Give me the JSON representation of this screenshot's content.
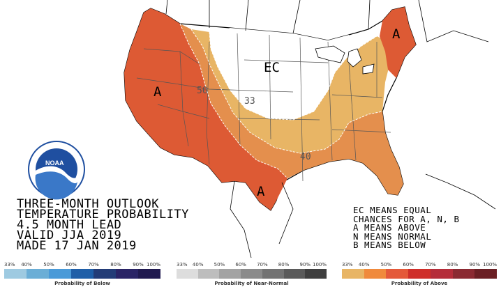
{
  "map": {
    "labels": {
      "ec": "EC",
      "a_west": "A",
      "a_texas": "A",
      "a_ne": "A",
      "c50": "50",
      "c33": "33",
      "c40": "40"
    }
  },
  "title_lines": [
    "THREE-MONTH OUTLOOK",
    "TEMPERATURE PROBABILITY",
    "4.5 MONTH LEAD",
    "VALID JJA 2019",
    "MADE 17 JAN 2019"
  ],
  "legend_lines": [
    "EC MEANS EQUAL",
    "CHANCES FOR A, N, B",
    "A MEANS ABOVE",
    "N MEANS NORMAL",
    "B MEANS BELOW"
  ],
  "colors": {
    "above_33_40": "#e8b565",
    "above_40_50": "#e48f4d",
    "above_50_60": "#dd5a34",
    "state_lines": "#555555",
    "coast": "#000000"
  },
  "scales": [
    {
      "label": "Probability of Below",
      "ticks": [
        "33%",
        "40%",
        "50%",
        "60%",
        "70%",
        "80%",
        "90%",
        "100%"
      ],
      "colors": [
        "#9ecae1",
        "#6baed6",
        "#4a9ad8",
        "#1f5fa8",
        "#233c77",
        "#2a2466",
        "#201a50"
      ]
    },
    {
      "label": "Probability of Near-Normal",
      "ticks": [
        "33%",
        "40%",
        "50%",
        "60%",
        "70%",
        "80%",
        "90%",
        "100%"
      ],
      "colors": [
        "#dddddd",
        "#bdbdbd",
        "#a3a3a3",
        "#8b8b8b",
        "#737373",
        "#5a5a5a",
        "#3f3f3f"
      ]
    },
    {
      "label": "Probability of Above",
      "ticks": [
        "33%",
        "40%",
        "50%",
        "60%",
        "70%",
        "80%",
        "90%",
        "100%"
      ],
      "colors": [
        "#e8b565",
        "#f08a3c",
        "#e4593a",
        "#cf2f2a",
        "#b52d3a",
        "#8b2a32",
        "#6b1f24"
      ]
    }
  ]
}
